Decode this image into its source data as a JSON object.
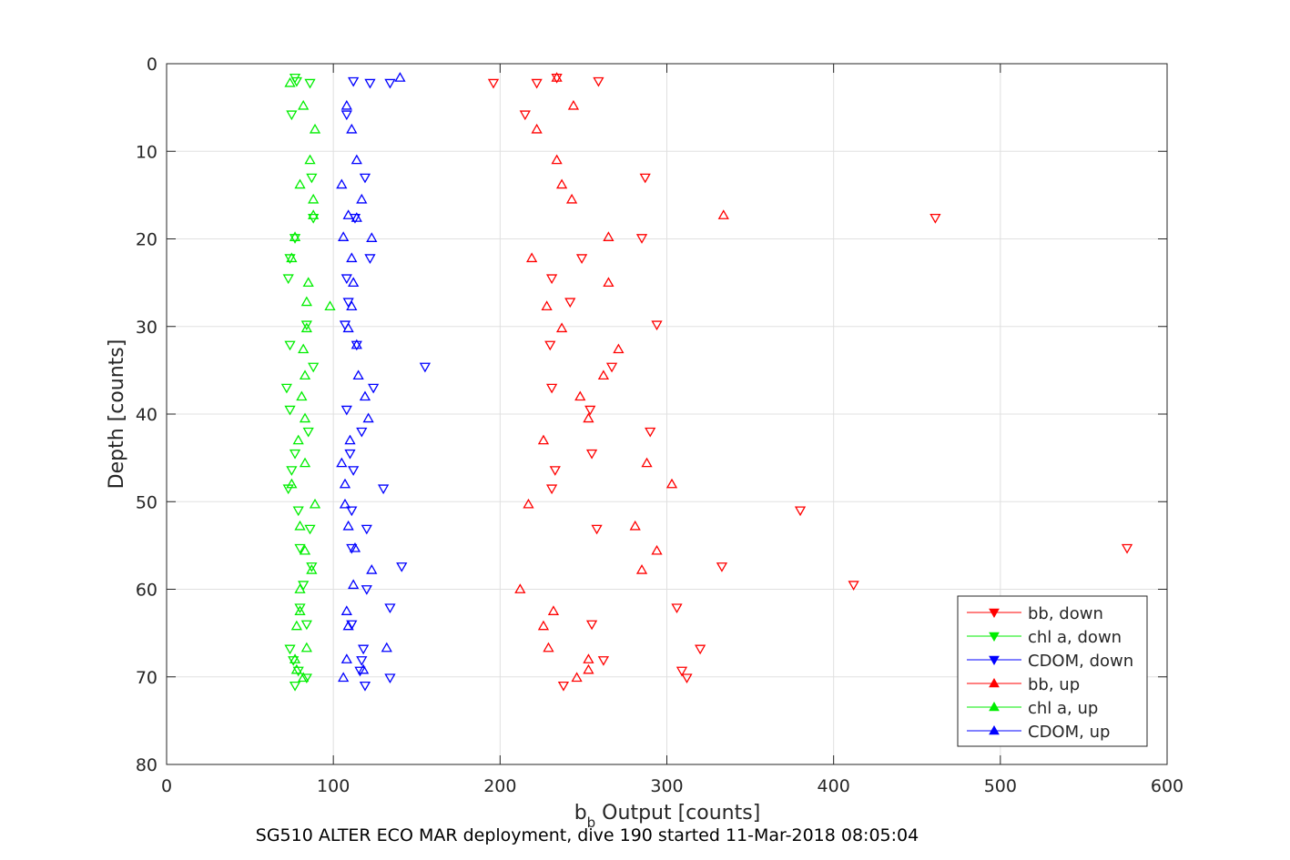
{
  "figure": {
    "xlabel_main": "b",
    "xlabel_sub": "b",
    "xlabel_rest": " Output [counts]",
    "ylabel": "Depth [counts]",
    "caption": "SG510 ALTER ECO MAR deployment, dive 190 started 11-Mar-2018 08:05:04"
  },
  "chart_data": {
    "type": "scatter",
    "xlabel": "b_b Output [counts]",
    "ylabel": "Depth [counts]",
    "xlim": [
      0,
      600
    ],
    "ylim": [
      0,
      80
    ],
    "y_reversed": true,
    "grid": true,
    "legend_position": "bottom-right",
    "x_ticks": [
      "0",
      "100",
      "200",
      "300",
      "400",
      "500",
      "600"
    ],
    "y_ticks": [
      "0",
      "10",
      "20",
      "30",
      "40",
      "50",
      "60",
      "70",
      "80"
    ],
    "series": [
      {
        "name": "bb, down",
        "color": "#ff0000",
        "marker": "triangle-down",
        "points": [
          [
            234,
            1.6
          ],
          [
            259,
            2.0
          ],
          [
            196,
            2.2
          ],
          [
            222,
            2.2
          ],
          [
            215,
            5.8
          ],
          [
            287,
            13.0
          ],
          [
            461,
            17.6
          ],
          [
            285,
            19.9
          ],
          [
            249,
            22.2
          ],
          [
            231,
            24.5
          ],
          [
            242,
            27.2
          ],
          [
            294,
            29.8
          ],
          [
            230,
            32.1
          ],
          [
            267,
            34.6
          ],
          [
            231,
            37.0
          ],
          [
            254,
            39.5
          ],
          [
            290,
            42.0
          ],
          [
            255,
            44.5
          ],
          [
            233,
            46.4
          ],
          [
            231,
            48.5
          ],
          [
            380,
            51.0
          ],
          [
            258,
            53.1
          ],
          [
            576,
            55.3
          ],
          [
            333,
            57.4
          ],
          [
            412,
            59.5
          ],
          [
            306,
            62.1
          ],
          [
            255,
            64.0
          ],
          [
            320,
            66.8
          ],
          [
            262,
            68.1
          ],
          [
            309,
            69.3
          ],
          [
            312,
            70.1
          ],
          [
            238,
            71.0
          ]
        ]
      },
      {
        "name": "chl a, down",
        "color": "#00ee00",
        "marker": "triangle-down",
        "points": [
          [
            77,
            1.6
          ],
          [
            78,
            2.0
          ],
          [
            86,
            2.2
          ],
          [
            75,
            5.8
          ],
          [
            87,
            13.0
          ],
          [
            88,
            17.6
          ],
          [
            77,
            19.9
          ],
          [
            74,
            22.2
          ],
          [
            73,
            24.5
          ],
          [
            84,
            29.8
          ],
          [
            74,
            32.1
          ],
          [
            88,
            34.6
          ],
          [
            72,
            37.0
          ],
          [
            74,
            39.5
          ],
          [
            85,
            42.0
          ],
          [
            77,
            44.5
          ],
          [
            75,
            46.4
          ],
          [
            73,
            48.5
          ],
          [
            79,
            51.0
          ],
          [
            86,
            53.1
          ],
          [
            80,
            55.3
          ],
          [
            87,
            57.4
          ],
          [
            82,
            59.5
          ],
          [
            80,
            62.1
          ],
          [
            84,
            64.0
          ],
          [
            74,
            66.8
          ],
          [
            76,
            68.1
          ],
          [
            79,
            69.3
          ],
          [
            84,
            70.1
          ],
          [
            77,
            71.0
          ]
        ]
      },
      {
        "name": "CDOM, down",
        "color": "#0000ff",
        "marker": "triangle-down",
        "points": [
          [
            134,
            2.2
          ],
          [
            112,
            2.0
          ],
          [
            122,
            2.2
          ],
          [
            108,
            5.8
          ],
          [
            119,
            13.0
          ],
          [
            113,
            17.6
          ],
          [
            122,
            22.2
          ],
          [
            108,
            24.5
          ],
          [
            109,
            27.2
          ],
          [
            107,
            29.8
          ],
          [
            114,
            32.1
          ],
          [
            155,
            34.6
          ],
          [
            124,
            37.0
          ],
          [
            108,
            39.5
          ],
          [
            117,
            42.0
          ],
          [
            110,
            44.5
          ],
          [
            112,
            46.4
          ],
          [
            130,
            48.5
          ],
          [
            111,
            51.0
          ],
          [
            120,
            53.1
          ],
          [
            111,
            55.3
          ],
          [
            141,
            57.4
          ],
          [
            120,
            60.0
          ],
          [
            134,
            62.1
          ],
          [
            111,
            64.0
          ],
          [
            118,
            66.8
          ],
          [
            117,
            68.1
          ],
          [
            116,
            69.3
          ],
          [
            134,
            70.1
          ],
          [
            119,
            71.0
          ]
        ]
      },
      {
        "name": "bb, up",
        "color": "#ff0000",
        "marker": "triangle-up",
        "points": [
          [
            234,
            1.6
          ],
          [
            244,
            4.8
          ],
          [
            222,
            7.5
          ],
          [
            234,
            11.0
          ],
          [
            237,
            13.8
          ],
          [
            243,
            15.5
          ],
          [
            334,
            17.3
          ],
          [
            265,
            19.8
          ],
          [
            219,
            22.2
          ],
          [
            265,
            25.0
          ],
          [
            228,
            27.7
          ],
          [
            237,
            30.2
          ],
          [
            271,
            32.6
          ],
          [
            262,
            35.6
          ],
          [
            248,
            38.0
          ],
          [
            253,
            40.5
          ],
          [
            226,
            43.0
          ],
          [
            288,
            45.6
          ],
          [
            303,
            48.0
          ],
          [
            217,
            50.3
          ],
          [
            281,
            52.8
          ],
          [
            294,
            55.6
          ],
          [
            285,
            57.8
          ],
          [
            212,
            60.0
          ],
          [
            232,
            62.5
          ],
          [
            226,
            64.2
          ],
          [
            229,
            66.7
          ],
          [
            253,
            68.0
          ],
          [
            253,
            69.2
          ],
          [
            246,
            70.1
          ]
        ]
      },
      {
        "name": "chl a, up",
        "color": "#00ee00",
        "marker": "triangle-up",
        "points": [
          [
            74,
            2.2
          ],
          [
            82,
            4.8
          ],
          [
            89,
            7.5
          ],
          [
            86,
            11.0
          ],
          [
            80,
            13.8
          ],
          [
            88,
            15.5
          ],
          [
            88,
            17.3
          ],
          [
            77,
            19.8
          ],
          [
            75,
            22.2
          ],
          [
            85,
            25.0
          ],
          [
            84,
            27.2
          ],
          [
            98,
            27.7
          ],
          [
            84,
            30.2
          ],
          [
            82,
            32.6
          ],
          [
            83,
            35.6
          ],
          [
            81,
            38.0
          ],
          [
            83,
            40.5
          ],
          [
            79,
            43.0
          ],
          [
            83,
            45.6
          ],
          [
            75,
            48.0
          ],
          [
            89,
            50.3
          ],
          [
            80,
            52.8
          ],
          [
            83,
            55.6
          ],
          [
            87,
            57.8
          ],
          [
            80,
            60.0
          ],
          [
            80,
            62.5
          ],
          [
            78,
            64.2
          ],
          [
            84,
            66.7
          ],
          [
            77,
            68.0
          ],
          [
            78,
            69.2
          ],
          [
            82,
            70.1
          ]
        ]
      },
      {
        "name": "CDOM, up",
        "color": "#0000ff",
        "marker": "triangle-up",
        "points": [
          [
            140,
            1.6
          ],
          [
            108,
            4.8
          ],
          [
            111,
            7.5
          ],
          [
            114,
            11.0
          ],
          [
            105,
            13.8
          ],
          [
            117,
            15.5
          ],
          [
            109,
            17.3
          ],
          [
            114,
            17.6
          ],
          [
            106,
            19.8
          ],
          [
            123,
            19.9
          ],
          [
            111,
            22.2
          ],
          [
            112,
            25.0
          ],
          [
            111,
            27.7
          ],
          [
            109,
            30.2
          ],
          [
            114,
            32.1
          ],
          [
            115,
            35.6
          ],
          [
            119,
            38.0
          ],
          [
            121,
            40.5
          ],
          [
            110,
            43.0
          ],
          [
            105,
            45.6
          ],
          [
            107,
            48.0
          ],
          [
            107,
            50.3
          ],
          [
            109,
            52.8
          ],
          [
            113,
            55.3
          ],
          [
            123,
            57.8
          ],
          [
            112,
            59.5
          ],
          [
            108,
            62.5
          ],
          [
            109,
            64.2
          ],
          [
            132,
            66.7
          ],
          [
            108,
            68.0
          ],
          [
            118,
            69.2
          ],
          [
            106,
            70.1
          ]
        ]
      }
    ]
  }
}
